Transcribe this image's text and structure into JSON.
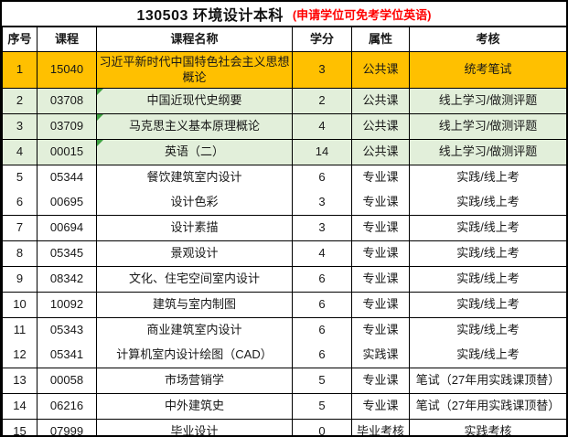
{
  "header": {
    "title": "130503 环境设计本科",
    "note": "(申请学位可免考学位英语)"
  },
  "chart_data": {
    "type": "table",
    "title": "130503 环境设计本科",
    "annotation": "(申请学位可免考学位英语)",
    "columns": [
      "序号",
      "课程",
      "课程名称",
      "学分",
      "属性",
      "考核"
    ],
    "rows": [
      {
        "no": "1",
        "code": "15040",
        "name": "习近平新时代中国特色社会主义思想概论",
        "credits": "3",
        "attr": "公共课",
        "exam": "统考笔试",
        "highlight": "gold"
      },
      {
        "no": "2",
        "code": "03708",
        "name": "中国近现代史纲要",
        "credits": "2",
        "attr": "公共课",
        "exam": "线上学习/做测评题",
        "highlight": "green",
        "corner_marker": true
      },
      {
        "no": "3",
        "code": "03709",
        "name": "马克思主义基本原理概论",
        "credits": "4",
        "attr": "公共课",
        "exam": "线上学习/做测评题",
        "highlight": "green",
        "corner_marker": true
      },
      {
        "no": "4",
        "code": "00015",
        "name": "英语（二）",
        "credits": "14",
        "attr": "公共课",
        "exam": "线上学习/做测评题",
        "highlight": "green",
        "corner_marker": true
      },
      {
        "no": "5",
        "code": "05344",
        "name": "餐饮建筑室内设计",
        "credits": "6",
        "attr": "专业课",
        "exam": "实践/线上考",
        "merge_below": true
      },
      {
        "no": "6",
        "code": "00695",
        "name": "设计色彩",
        "credits": "3",
        "attr": "专业课",
        "exam": "实践/线上考"
      },
      {
        "no": "7",
        "code": "00694",
        "name": "设计素描",
        "credits": "3",
        "attr": "专业课",
        "exam": "实践/线上考"
      },
      {
        "no": "8",
        "code": "05345",
        "name": "景观设计",
        "credits": "4",
        "attr": "专业课",
        "exam": "实践/线上考"
      },
      {
        "no": "9",
        "code": "08342",
        "name": "文化、住宅空间室内设计",
        "credits": "6",
        "attr": "专业课",
        "exam": "实践/线上考"
      },
      {
        "no": "10",
        "code": "10092",
        "name": "建筑与室内制图",
        "credits": "6",
        "attr": "专业课",
        "exam": "实践/线上考"
      },
      {
        "no": "11",
        "code": "05343",
        "name": "商业建筑室内设计",
        "credits": "6",
        "attr": "专业课",
        "exam": "实践/线上考",
        "merge_below": true
      },
      {
        "no": "12",
        "code": "05341",
        "name": "计算机室内设计绘图（CAD）",
        "credits": "6",
        "attr": "实践课",
        "exam": "实践/线上考"
      },
      {
        "no": "13",
        "code": "00058",
        "name": "市场营销学",
        "credits": "5",
        "attr": "专业课",
        "exam": "笔试（27年用实践课顶替）"
      },
      {
        "no": "14",
        "code": "06216",
        "name": "中外建筑史",
        "credits": "5",
        "attr": "专业课",
        "exam": "笔试（27年用实践课顶替）"
      },
      {
        "no": "15",
        "code": "07999",
        "name": "毕业设计",
        "credits": "0",
        "attr": "毕业考核",
        "exam": "实践考核"
      }
    ]
  },
  "colors": {
    "highlight_gold": "#FFC000",
    "highlight_green": "#E2EFDA",
    "note_red": "#FF0000",
    "border": "#000000",
    "corner_marker_green": "#3FA142"
  }
}
